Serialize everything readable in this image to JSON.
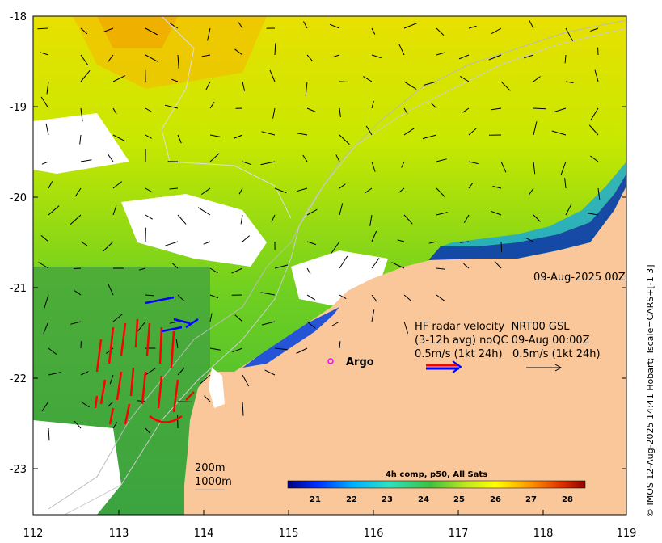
{
  "map": {
    "x_ticks": [
      "112",
      "113",
      "114",
      "115",
      "116",
      "117",
      "118",
      "119"
    ],
    "y_ticks": [
      "-18",
      "-19",
      "-20",
      "-21",
      "-22",
      "-23"
    ],
    "date_label": "09-Aug-2025 00Z",
    "argo_label": "Argo",
    "depth_labels": [
      "200m",
      "1000m"
    ],
    "legend": {
      "line1": "HF radar velocity  NRT00 GSL",
      "line2": "(3-12h avg) noQC 09-Aug 00:00Z",
      "line3": "0.5m/s (1kt 24h)   0.5m/s (1kt 24h)"
    },
    "colorbar": {
      "title": "4h comp, p50, All Sats",
      "ticks": [
        "21",
        "22",
        "23",
        "24",
        "25",
        "26",
        "27",
        "28"
      ],
      "colors": [
        "#00007f",
        "#0000cc",
        "#0040ff",
        "#0090ff",
        "#00d0ff",
        "#30ffd0",
        "#80ff80",
        "#c0ff40",
        "#ffff00",
        "#ffc000",
        "#ff8000",
        "#ff4000",
        "#d00000",
        "#8b0000"
      ]
    },
    "credit": "© IMOS 12-Aug-2025 14:41 Hobart; Tscale=CARS+[-1 3]",
    "colors": {
      "land": "#f9c79a",
      "radar_red": "#ff0000",
      "radar_blue": "#0000ff",
      "argo": "#ff00ff"
    }
  }
}
